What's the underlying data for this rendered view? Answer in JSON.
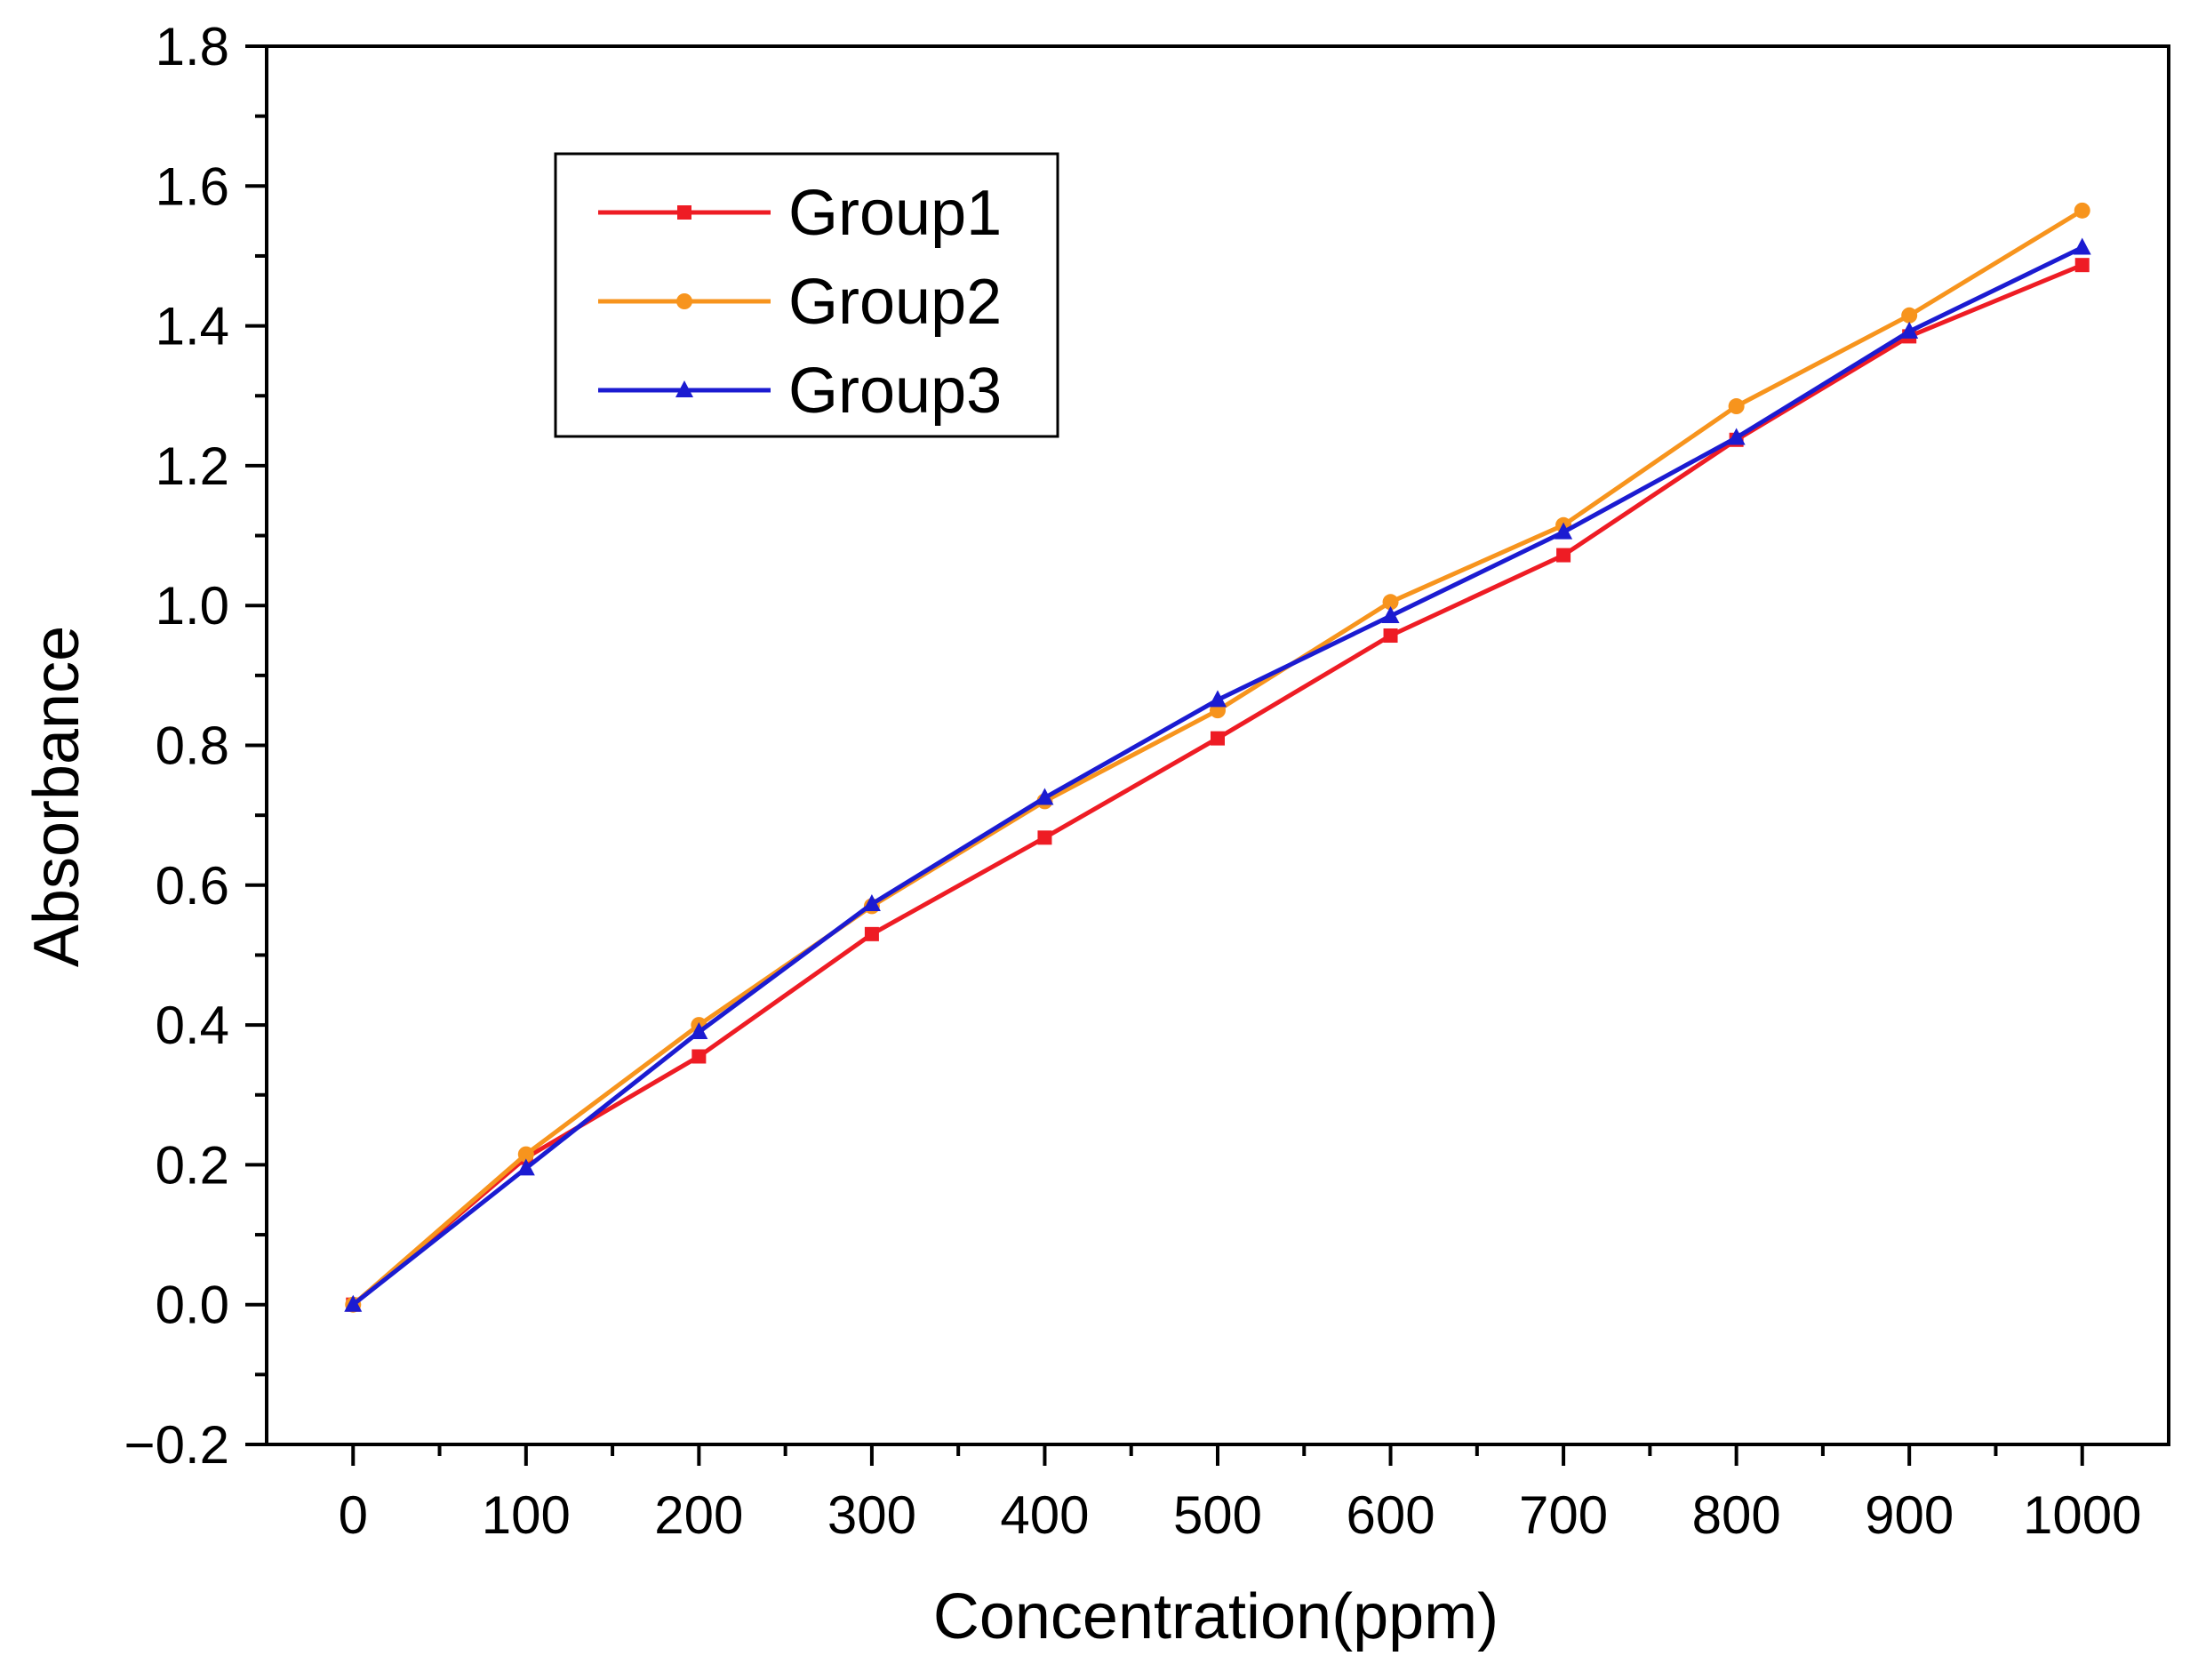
{
  "chart_data": {
    "type": "line",
    "title": "",
    "xlabel": "Concentration(ppm)",
    "ylabel": "Absorbance",
    "x": [
      0,
      100,
      200,
      300,
      400,
      500,
      600,
      700,
      800,
      900,
      1000
    ],
    "xlim": [
      -50,
      1050
    ],
    "ylim": [
      -0.2,
      1.8
    ],
    "x_ticks": [
      0,
      100,
      200,
      300,
      400,
      500,
      600,
      700,
      800,
      900,
      1000
    ],
    "x_tick_labels": [
      "0",
      "100",
      "200",
      "300",
      "400",
      "500",
      "600",
      "700",
      "800",
      "900",
      "1000"
    ],
    "y_ticks": [
      -0.2,
      0.0,
      0.2,
      0.4,
      0.6,
      0.8,
      1.0,
      1.2,
      1.4,
      1.6,
      1.8
    ],
    "y_tick_labels": [
      "−0.2",
      "0.0",
      "0.2",
      "0.4",
      "0.6",
      "0.8",
      "1.0",
      "1.2",
      "1.4",
      "1.6",
      "1.8"
    ],
    "grid": false,
    "legend_position": "top-left",
    "series": [
      {
        "name": "Group1",
        "color": "#ee1c24",
        "marker": "square",
        "values": [
          0.0,
          0.21,
          0.355,
          0.53,
          0.668,
          0.81,
          0.957,
          1.072,
          1.237,
          1.385,
          1.487
        ]
      },
      {
        "name": "Group2",
        "color": "#f7941d",
        "marker": "circle",
        "values": [
          0.0,
          0.215,
          0.4,
          0.57,
          0.72,
          0.85,
          1.005,
          1.115,
          1.285,
          1.415,
          1.565
        ]
      },
      {
        "name": "Group3",
        "color": "#1b1bd1",
        "marker": "triangle",
        "values": [
          0.0,
          0.195,
          0.39,
          0.573,
          0.725,
          0.865,
          0.985,
          1.105,
          1.24,
          1.392,
          1.512
        ]
      }
    ]
  }
}
